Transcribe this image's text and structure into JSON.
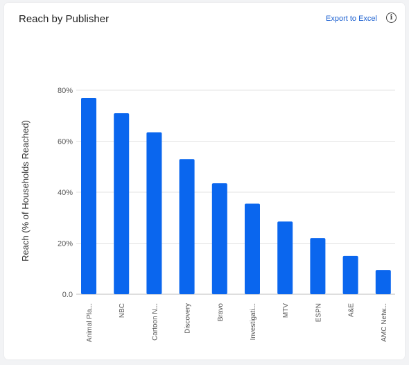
{
  "header": {
    "title": "Reach by Publisher",
    "export_label": "Export to Excel",
    "info_symbol": "i"
  },
  "chart_data": {
    "type": "bar",
    "categories": [
      "Animal Pla...",
      "NBC",
      "Cartoon N...",
      "Discovery",
      "Bravo",
      "Investigati...",
      "MTV",
      "ESPN",
      "A&E",
      "AMC Netw..."
    ],
    "values": [
      77,
      71,
      63.5,
      53,
      43.5,
      35.5,
      28.5,
      22,
      15,
      9.5
    ],
    "xlabel": "",
    "ylabel": "Reach (% of Households Reached)",
    "ylim": [
      0,
      80
    ],
    "yticks": [
      "0.0",
      "20%",
      "40%",
      "60%",
      "80%"
    ],
    "ytick_values": [
      0,
      20,
      40,
      60,
      80
    ],
    "bar_color": "#0a66ee",
    "grid": true,
    "legend": "none"
  }
}
